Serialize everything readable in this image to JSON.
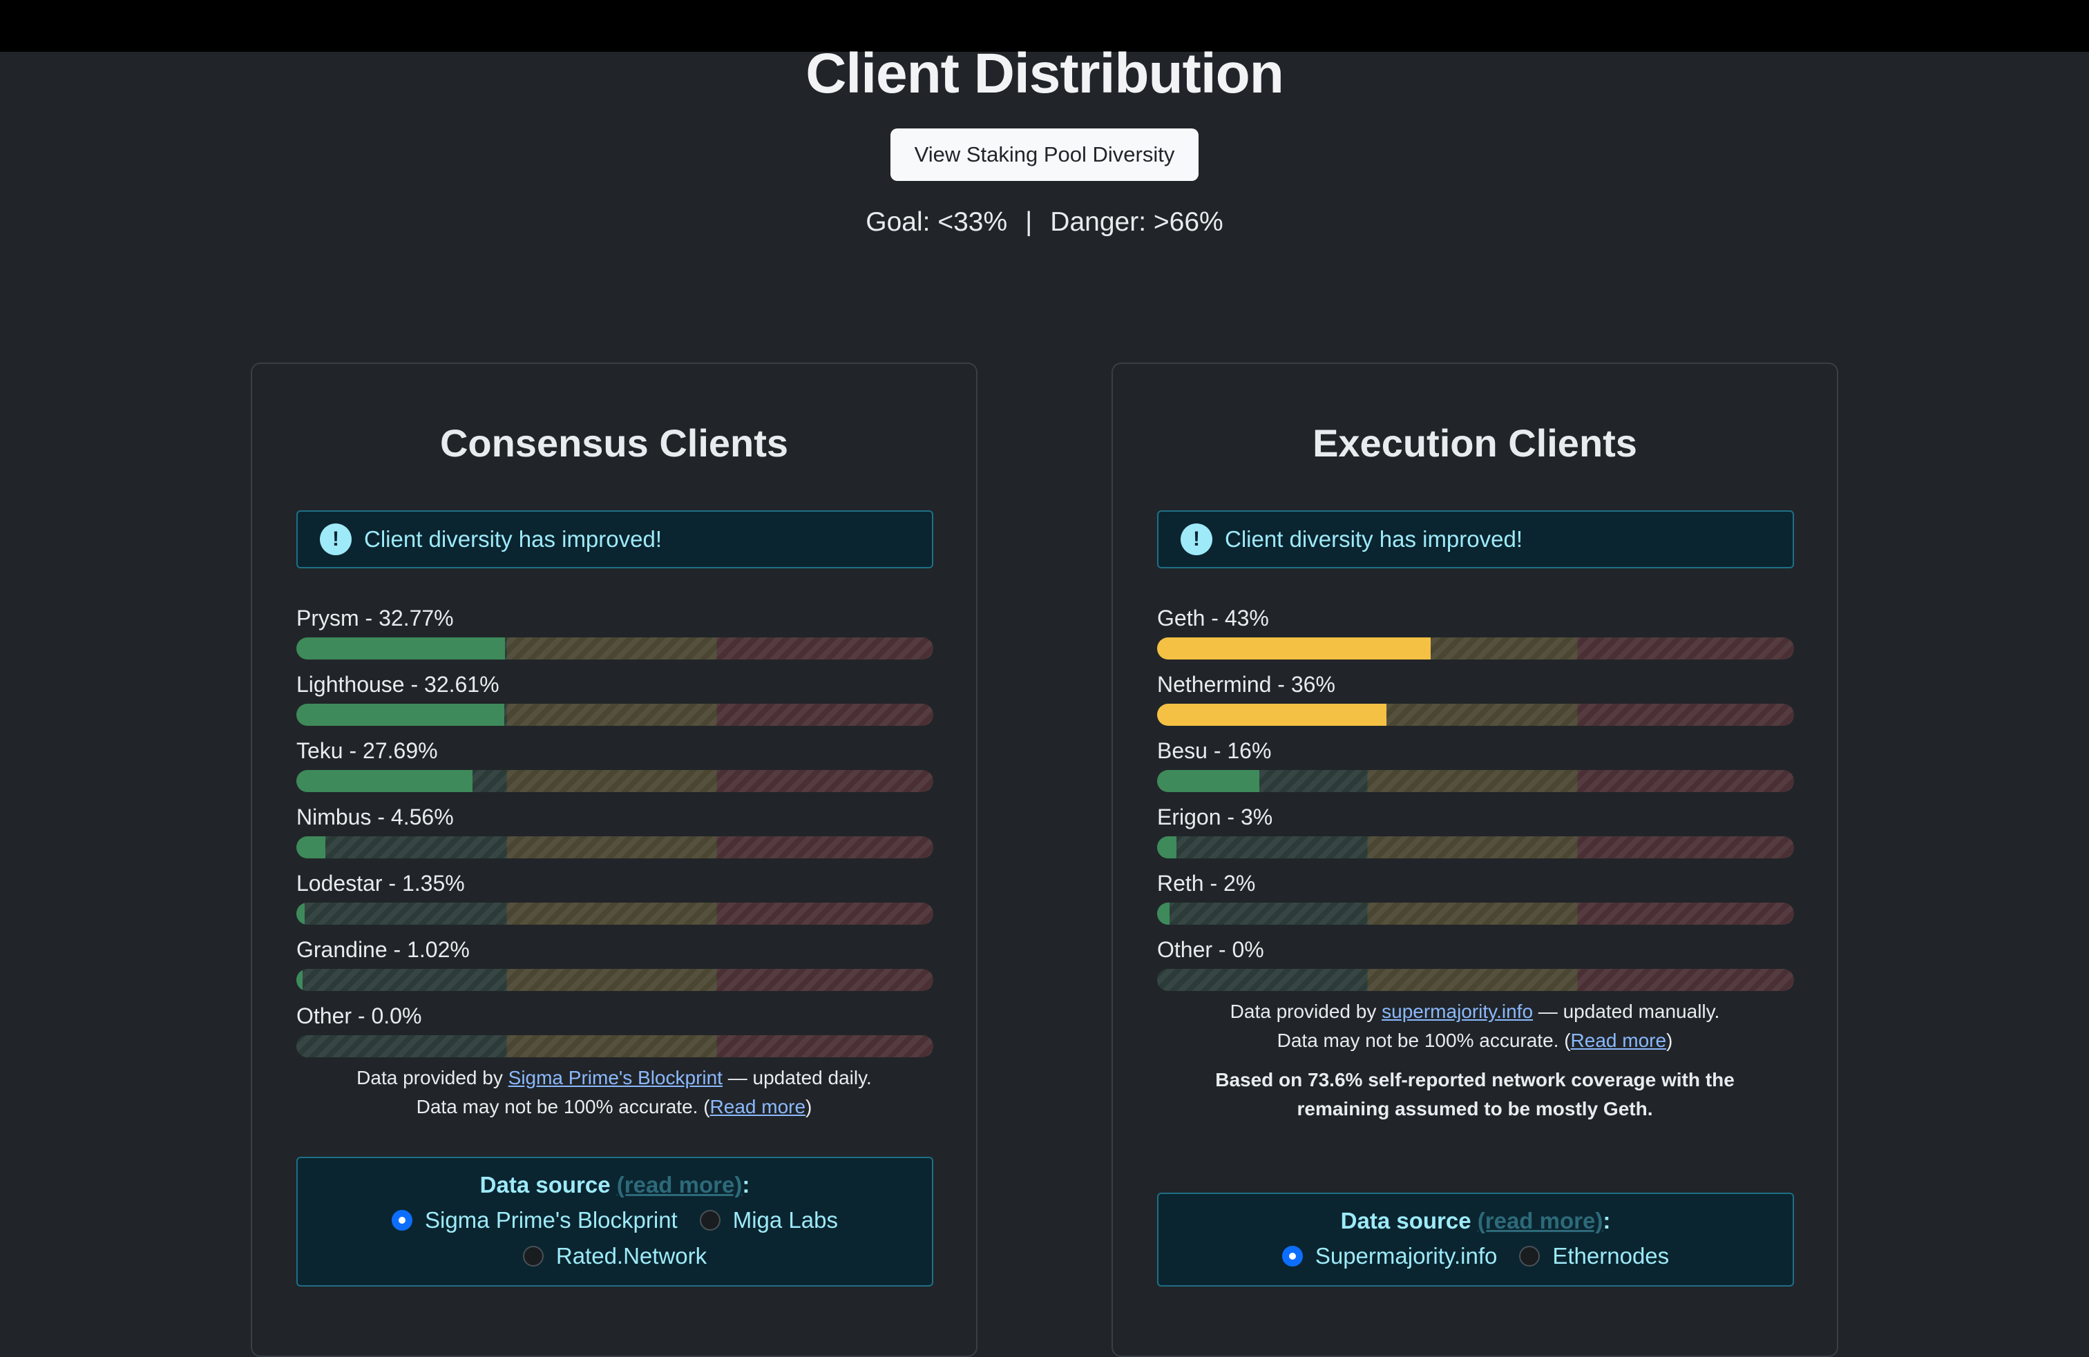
{
  "header": {
    "title": "Client Distribution",
    "pool_button": "View Staking Pool Diversity",
    "goal": "Goal: <33%",
    "separator": "|",
    "danger": "Danger: >66%"
  },
  "colors": {
    "green": "#3e8a5a",
    "yellow": "#f4c144"
  },
  "consensus": {
    "title": "Consensus Clients",
    "alert": "Client diversity has improved!",
    "clients": [
      {
        "label": "Prysm - 32.77%",
        "value": 32.77,
        "color": "#3e8a5a"
      },
      {
        "label": "Lighthouse - 32.61%",
        "value": 32.61,
        "color": "#3e8a5a"
      },
      {
        "label": "Teku - 27.69%",
        "value": 27.69,
        "color": "#3e8a5a"
      },
      {
        "label": "Nimbus - 4.56%",
        "value": 4.56,
        "color": "#3e8a5a"
      },
      {
        "label": "Lodestar - 1.35%",
        "value": 1.35,
        "color": "#3e8a5a"
      },
      {
        "label": "Grandine - 1.02%",
        "value": 1.02,
        "color": "#3e8a5a"
      },
      {
        "label": "Other - 0.0%",
        "value": 0.0,
        "color": "#3e8a5a"
      }
    ],
    "note_prefix": "Data provided by ",
    "note_link": "Sigma Prime's Blockprint",
    "note_suffix": " — updated daily.",
    "accuracy_prefix": "Data may not be 100% accurate. (",
    "accuracy_link": "Read more",
    "accuracy_suffix": ")",
    "source_title": "Data source",
    "source_readmore": "(read more)",
    "source_colon": ":",
    "sources": [
      {
        "label": "Sigma Prime's Blockprint",
        "selected": true
      },
      {
        "label": "Miga Labs",
        "selected": false
      },
      {
        "label": "Rated.Network",
        "selected": false
      }
    ]
  },
  "execution": {
    "title": "Execution Clients",
    "alert": "Client diversity has improved!",
    "clients": [
      {
        "label": "Geth - 43%",
        "value": 43,
        "color": "#f4c144"
      },
      {
        "label": "Nethermind - 36%",
        "value": 36,
        "color": "#f4c144"
      },
      {
        "label": "Besu - 16%",
        "value": 16,
        "color": "#3e8a5a"
      },
      {
        "label": "Erigon - 3%",
        "value": 3,
        "color": "#3e8a5a"
      },
      {
        "label": "Reth - 2%",
        "value": 2,
        "color": "#3e8a5a"
      },
      {
        "label": "Other - 0%",
        "value": 0,
        "color": "#3e8a5a"
      }
    ],
    "note_prefix": "Data provided by ",
    "note_link": "supermajority.info",
    "note_suffix": " — updated manually.",
    "accuracy_prefix": "Data may not be 100% accurate. (",
    "accuracy_link": "Read more",
    "accuracy_suffix": ")",
    "coverage_line1": "Based on 73.6% self-reported network coverage with the",
    "coverage_line2": "remaining assumed to be mostly Geth.",
    "source_title": "Data source",
    "source_readmore": "(read more)",
    "source_colon": ":",
    "sources": [
      {
        "label": "Supermajority.info",
        "selected": true
      },
      {
        "label": "Ethernodes",
        "selected": false
      }
    ]
  }
}
